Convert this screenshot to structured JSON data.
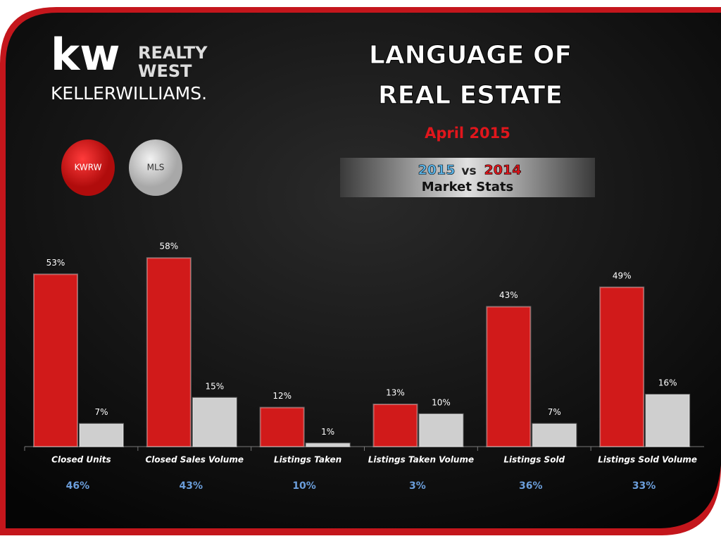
{
  "logo": {
    "mark": "kw",
    "line1": "REALTY",
    "line2": "WEST",
    "brand": "KELLERWILLIAMS."
  },
  "banner": {
    "year1": "2015",
    "vs": "vs",
    "year2": "2014",
    "caption": "Market Stats"
  },
  "chart_data": {
    "type": "bar",
    "title": [
      "LANGUAGE OF",
      "REAL ESTATE"
    ],
    "subtitle": "April 2015",
    "categories": [
      "Closed Units",
      "Closed Sales Volume",
      "Listings Taken",
      "Listings Taken Volume",
      "Listings Sold",
      "Listings Sold Volume"
    ],
    "series": [
      {
        "name": "KWRW",
        "color": "#d11a1a",
        "values": [
          53,
          58,
          12,
          13,
          43,
          49
        ],
        "value_labels": [
          "53%",
          "58%",
          "12%",
          "13%",
          "43%",
          "49%"
        ]
      },
      {
        "name": "MLS",
        "color": "#cfcfcf",
        "values": [
          7,
          15,
          1,
          10,
          7,
          16
        ],
        "value_labels": [
          "7%",
          "15%",
          "1%",
          "10%",
          "7%",
          "16%"
        ]
      }
    ],
    "differences": {
      "values": [
        46,
        43,
        10,
        3,
        36,
        33
      ],
      "value_labels": [
        "46%",
        "43%",
        "10%",
        "3%",
        "36%",
        "33%"
      ]
    },
    "ylim": [
      0,
      60
    ]
  }
}
